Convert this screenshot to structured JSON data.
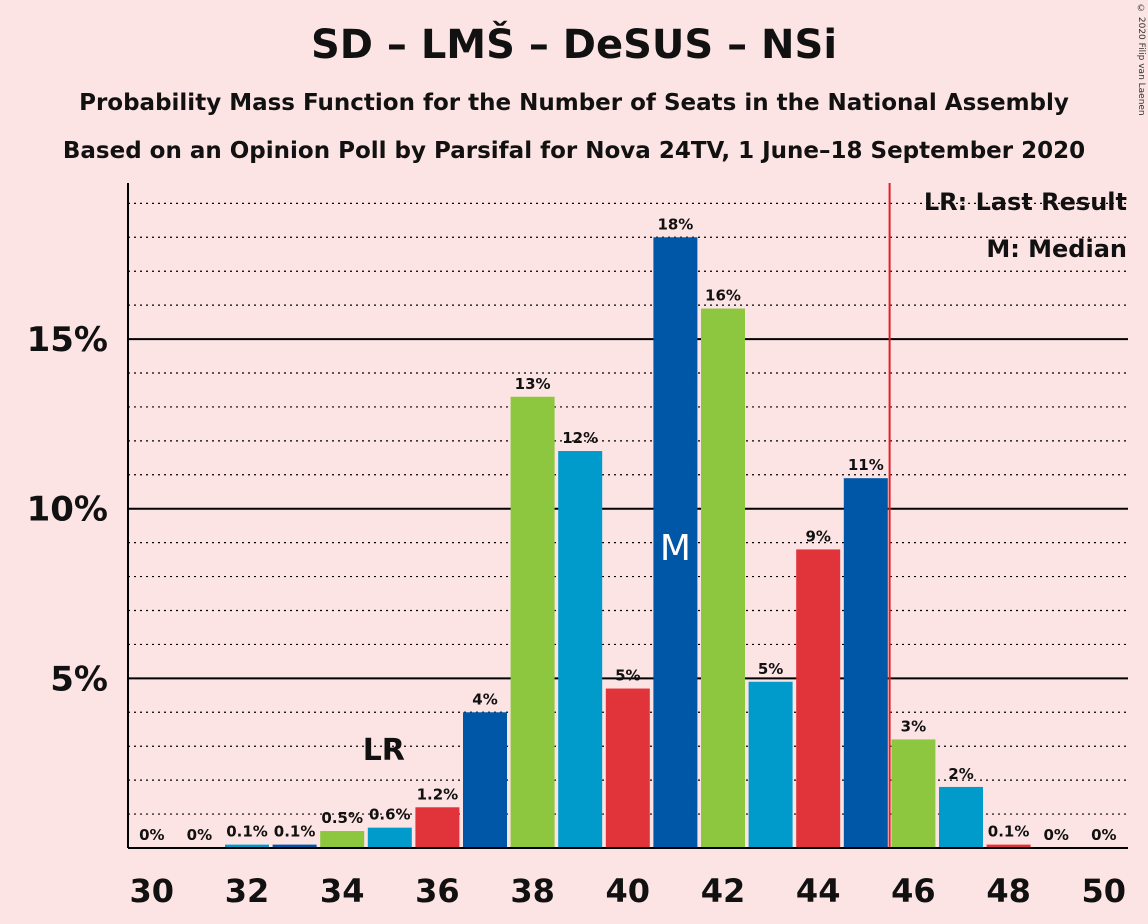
{
  "title": "SD – LMŠ – DeSUS – NSi",
  "subtitle": "Probability Mass Function for the Number of Seats in the National Assembly",
  "subtitle2": "Based on an Opinion Poll by Parsifal for Nova 24TV, 1 June–18 September 2020",
  "copyright": "© 2020 Filip van Laenen",
  "legend": {
    "lr": "LR: Last Result",
    "m": "M: Median"
  },
  "colors": {
    "background": "#FDE4E4",
    "blue": "#0057A8",
    "green": "#8DC63F",
    "teal": "#009BCB",
    "red": "#E0333A",
    "last_result_line": "#E01F26"
  },
  "chart_data": {
    "type": "bar",
    "x": [
      30,
      31,
      32,
      33,
      34,
      35,
      36,
      37,
      38,
      39,
      40,
      41,
      42,
      43,
      44,
      45,
      46,
      47,
      48,
      49,
      50
    ],
    "values": [
      0,
      0,
      0.1,
      0.1,
      0.5,
      0.6,
      1.2,
      4.0,
      13.3,
      11.7,
      4.7,
      18.0,
      15.9,
      4.9,
      8.8,
      10.9,
      3.2,
      1.8,
      0.1,
      0,
      0
    ],
    "labels": [
      "0%",
      "0%",
      "0.1%",
      "0.1%",
      "0.5%",
      "0.6%",
      "1.2%",
      "4%",
      "13%",
      "12%",
      "5%",
      "18%",
      "16%",
      "5%",
      "9%",
      "11%",
      "3%",
      "2%",
      "0.1%",
      "0%",
      "0%"
    ],
    "bar_colors": [
      "blue",
      "green",
      "teal",
      "blue",
      "green",
      "teal",
      "red",
      "blue",
      "green",
      "teal",
      "red",
      "blue",
      "green",
      "teal",
      "red",
      "blue",
      "green",
      "teal",
      "red",
      "blue",
      "green"
    ],
    "x_ticks": [
      "30",
      "32",
      "34",
      "36",
      "38",
      "40",
      "42",
      "44",
      "46",
      "48",
      "50"
    ],
    "y_ticks": [
      5,
      10,
      15
    ],
    "y_tick_labels": [
      "5%",
      "10%",
      "15%"
    ],
    "ylim": [
      0,
      19.6
    ],
    "grid": "dotted every 1%, solid every 5%",
    "median": 41,
    "median_label": "M",
    "last_result": 35,
    "last_result_label": "LR",
    "majority_line": 45.5
  }
}
